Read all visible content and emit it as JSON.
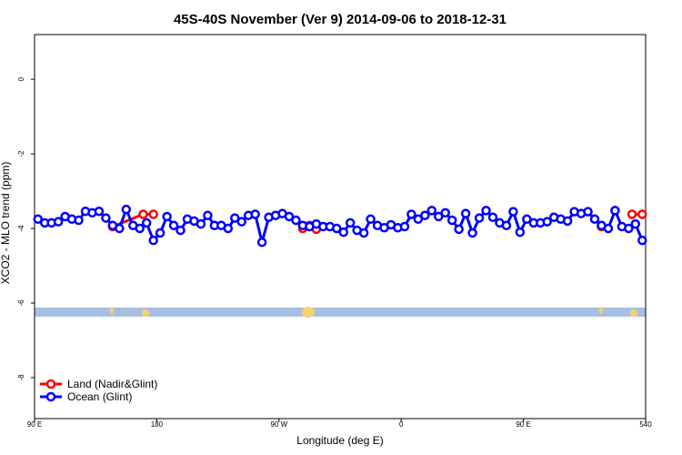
{
  "chart_data": {
    "type": "line",
    "title": "45S-40S November (Ver 9)   2014-09-06 to 2018-12-31",
    "xlabel": "Longitude (deg E)",
    "ylabel": "XCO2 - MLO trend (ppm)",
    "xlim": [
      90,
      540
    ],
    "xticks": [
      {
        "value": 90,
        "label": "90 E"
      },
      180,
      {
        "value": 270,
        "label": "90 W"
      },
      {
        "value": 360,
        "label": "0"
      },
      {
        "value": 450,
        "label": "90 E"
      },
      540
    ],
    "ylim": [
      -9.1,
      1.2
    ],
    "yticks": [
      0,
      -2,
      -4,
      -6,
      -8
    ],
    "legend": "bottom-left",
    "series": [
      {
        "name": "Land (Nadir&Glint)",
        "color": "#ff0000",
        "x": [
          147.5,
          170,
          177.5,
          null,
          287.5,
          292.5,
          297.5,
          null,
          507.5,
          null,
          530,
          537.5
        ],
        "values": [
          -3.95,
          -3.62,
          -3.62,
          null,
          -4.0,
          -3.92,
          -4.02,
          null,
          -3.95,
          null,
          -3.62,
          -3.62
        ]
      },
      {
        "name": "Ocean (Glint)",
        "color": "#0000ff",
        "x": [
          92.5,
          97.5,
          102.5,
          107.5,
          112.5,
          117.5,
          122.5,
          127.5,
          132.5,
          137.5,
          142.5,
          147.5,
          152.5,
          157.5,
          162.5,
          167.5,
          172.5,
          177.5,
          182.5,
          187.5,
          192.5,
          197.5,
          202.5,
          207.5,
          212.5,
          217.5,
          222.5,
          227.5,
          232.5,
          237.5,
          242.5,
          247.5,
          252.5,
          257.5,
          262.5,
          267.5,
          272.5,
          277.5,
          282.5,
          287.5,
          292.5,
          297.5,
          302.5,
          307.5,
          312.5,
          317.5,
          322.5,
          327.5,
          332.5,
          337.5,
          342.5,
          347.5,
          352.5,
          357.5,
          362.5,
          367.5,
          372.5,
          377.5,
          382.5,
          387.5,
          392.5,
          397.5,
          402.5,
          407.5,
          412.5,
          417.5,
          422.5,
          427.5,
          432.5,
          437.5,
          442.5,
          447.5,
          452.5,
          457.5,
          462.5,
          467.5,
          472.5,
          477.5,
          482.5,
          487.5,
          492.5,
          497.5,
          502.5,
          507.5,
          512.5,
          517.5,
          522.5,
          527.5,
          532.5,
          537.5
        ],
        "values": [
          -3.75,
          -3.85,
          -3.85,
          -3.82,
          -3.68,
          -3.75,
          -3.78,
          -3.54,
          -3.58,
          -3.54,
          -3.72,
          -3.92,
          -4.0,
          -3.49,
          -3.92,
          -4.0,
          -3.85,
          -4.32,
          -4.12,
          -3.68,
          -3.92,
          -4.05,
          -3.75,
          -3.8,
          -3.88,
          -3.65,
          -3.92,
          -3.92,
          -4.0,
          -3.72,
          -3.82,
          -3.65,
          -3.62,
          -4.37,
          -3.7,
          -3.65,
          -3.6,
          -3.68,
          -3.78,
          -3.92,
          -3.95,
          -3.88,
          -3.95,
          -3.95,
          -4.0,
          -4.1,
          -3.85,
          -4.05,
          -4.12,
          -3.75,
          -3.92,
          -3.98,
          -3.9,
          -3.98,
          -3.95,
          -3.62,
          -3.75,
          -3.65,
          -3.52,
          -3.68,
          -3.58,
          -3.78,
          -4.02,
          -3.6,
          -4.12,
          -3.72,
          -3.52,
          -3.7,
          -3.85,
          -3.92,
          -3.55,
          -4.1,
          -3.75,
          -3.85,
          -3.85,
          -3.82,
          -3.7,
          -3.75,
          -3.8,
          -3.55,
          -3.6,
          -3.55,
          -3.75,
          -3.92,
          -4.0,
          -3.52,
          -3.95,
          -4.0,
          -3.88,
          -4.32
        ]
      }
    ]
  }
}
